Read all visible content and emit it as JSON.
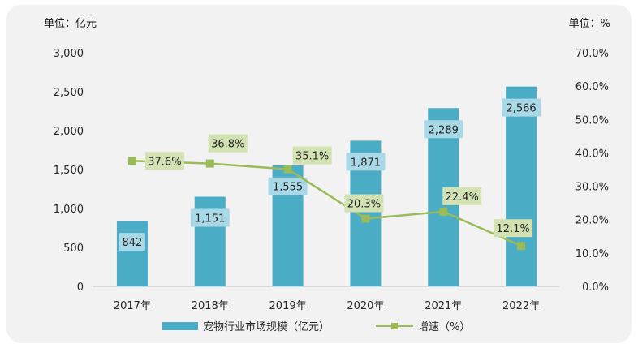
{
  "chart_data": {
    "type": "bar",
    "categories": [
      "2017年",
      "2018年",
      "2019年",
      "2020年",
      "2021年",
      "2022年"
    ],
    "series": [
      {
        "name": "宠物行业市场规模（亿元）",
        "kind": "bar",
        "axis": "left",
        "values": [
          842,
          1151,
          1555,
          1871,
          2289,
          2566
        ],
        "labels": [
          "842",
          "1,151",
          "1,555",
          "1,871",
          "2,289",
          "2,566"
        ],
        "color": "#4bacc6"
      },
      {
        "name": "增速（%）",
        "kind": "line",
        "axis": "right",
        "values": [
          37.6,
          36.8,
          35.1,
          20.3,
          22.4,
          12.1
        ],
        "labels": [
          "37.6%",
          "36.8%",
          "35.1%",
          "20.3%",
          "22.4%",
          "12.1%"
        ],
        "color": "#9bbb59"
      }
    ],
    "left_axis": {
      "unit_label": "单位：亿元",
      "ylim": [
        0,
        3000
      ],
      "ticks": [
        0,
        500,
        1000,
        1500,
        2000,
        2500,
        3000
      ],
      "tick_labels": [
        "0",
        "500",
        "1,000",
        "1,500",
        "2,000",
        "2,500",
        "3,000"
      ]
    },
    "right_axis": {
      "unit_label": "单位：%",
      "ylim": [
        0,
        70
      ],
      "ticks": [
        0,
        10,
        20,
        30,
        40,
        50,
        60,
        70
      ],
      "tick_labels": [
        "0.0%",
        "10.0%",
        "20.0%",
        "30.0%",
        "40.0%",
        "50.0%",
        "60.0%",
        "70.0%"
      ]
    },
    "grid": false,
    "legend_position": "bottom",
    "colors": {
      "bar": "#4bacc6",
      "bar_label_bg": "#a9d8e6",
      "line": "#9bbb59",
      "line_label_bg": "#d3e2b2",
      "card_bg": "#f2f2f2",
      "axis": "#bfbfbf"
    }
  }
}
